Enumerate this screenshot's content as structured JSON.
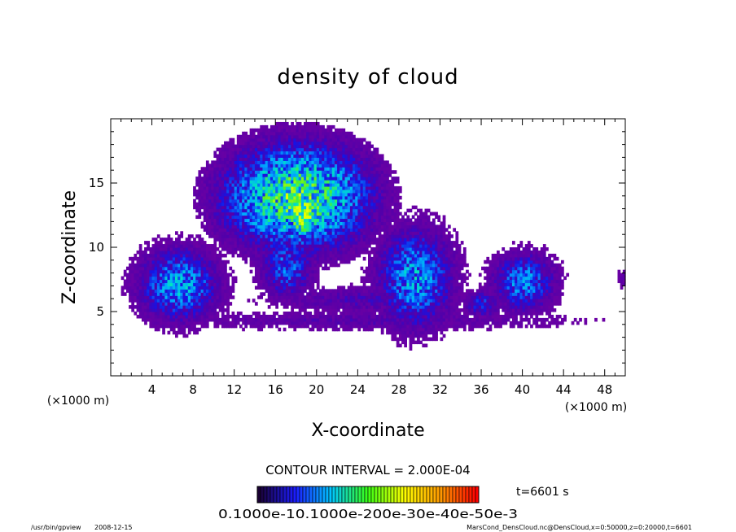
{
  "chart_data": {
    "type": "heatmap",
    "title": "density of cloud",
    "xlabel": "X-coordinate",
    "ylabel": "Z-coordinate",
    "x_unit": "(×1000 m)",
    "y_unit": "(×1000 m)",
    "xlim": [
      0,
      50
    ],
    "ylim": [
      0,
      20
    ],
    "x_ticks": [
      4,
      8,
      12,
      16,
      20,
      24,
      28,
      32,
      36,
      40,
      44,
      48
    ],
    "y_ticks": [
      5,
      10,
      15
    ],
    "contour_interval": "CONTOUR INTERVAL = 2.000E-04",
    "time_label": "t=6601 s",
    "colorbar_labels": "0.1000e-10.1000e-200e-30e-40e-50e-3",
    "colorbar_range": [
      0.0,
      0.001
    ],
    "cloud_blobs": [
      {
        "x": 6.5,
        "z": 7.0,
        "rx": 4.5,
        "rz": 3.2,
        "peak": 0.45
      },
      {
        "x": 18.0,
        "z": 13.8,
        "rx": 8.0,
        "rz": 4.6,
        "peak": 0.7
      },
      {
        "x": 18.5,
        "z": 12.5,
        "rx": 1.8,
        "rz": 2.0,
        "peak": 0.95
      },
      {
        "x": 17.0,
        "z": 8.5,
        "rx": 3.0,
        "rz": 3.0,
        "peak": 0.35
      },
      {
        "x": 29.5,
        "z": 7.5,
        "rx": 4.2,
        "rz": 4.4,
        "peak": 0.45
      },
      {
        "x": 40.0,
        "z": 7.2,
        "rx": 3.5,
        "rz": 2.6,
        "peak": 0.4
      },
      {
        "x": 36.0,
        "z": 5.5,
        "rx": 2.0,
        "rz": 1.2,
        "peak": 0.3
      },
      {
        "x": 25.0,
        "z": 5.8,
        "rx": 12.0,
        "rz": 1.2,
        "peak": 0.18
      },
      {
        "x": 25.0,
        "z": 4.2,
        "rx": 24.0,
        "rz": 0.9,
        "peak": 0.15
      },
      {
        "x": 50.0,
        "z": 7.5,
        "rx": 1.0,
        "rz": 1.0,
        "peak": 0.15
      }
    ],
    "colorbar_colors": [
      "#1a0033",
      "#1c1cff",
      "#00c8ff",
      "#39ff14",
      "#ffff00",
      "#ff9900",
      "#ff0000"
    ]
  },
  "footer": {
    "program": "/usr/bin/gpview",
    "date": "2008-12-15",
    "source": "MarsCond_DensCloud.nc@DensCloud,x=0:50000,z=0:20000,t=6601"
  }
}
